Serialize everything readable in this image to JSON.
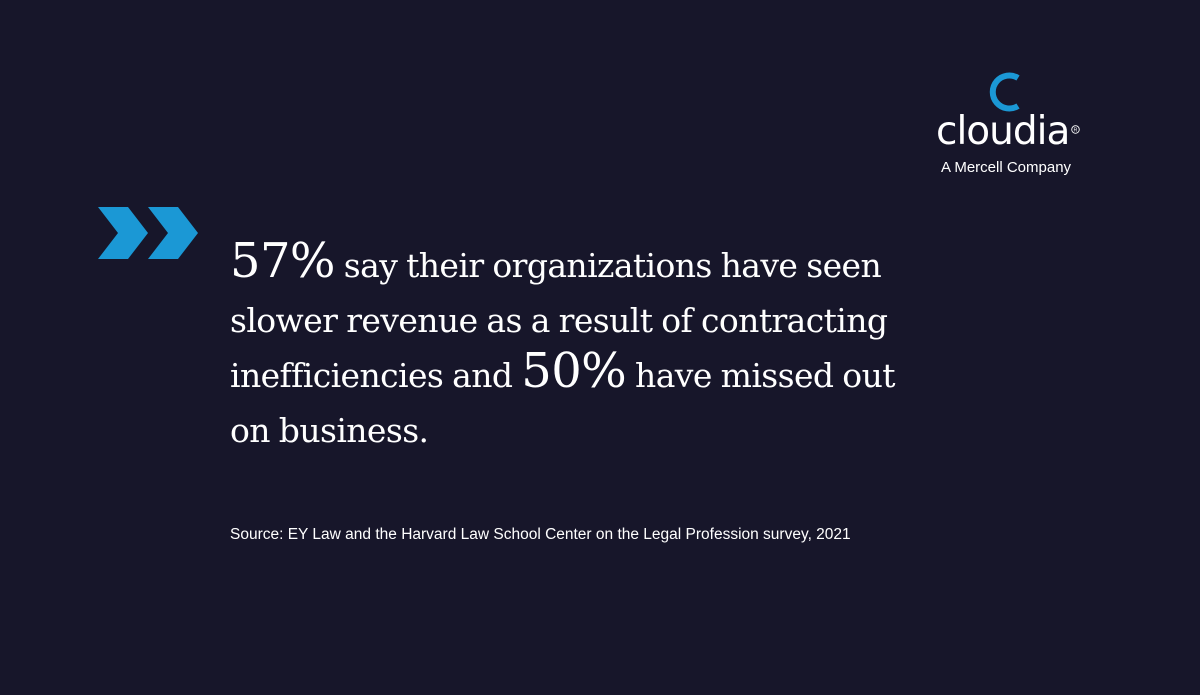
{
  "colors": {
    "background": "#17162a",
    "accent": "#1b98d5",
    "text": "#ffffff"
  },
  "logo": {
    "wordmark": "cloudia",
    "registered": "R",
    "tagline": "A Mercell Company",
    "mark_icon": "c-arc-icon"
  },
  "decoration": {
    "icon": "double-chevron-icon"
  },
  "quote": {
    "stat1": "57%",
    "text1": " say their organizations have seen slower revenue as a result of contracting inefficiencies and ",
    "stat2": "50%",
    "text2": " have missed out on business."
  },
  "source": "Source: EY Law and the Harvard Law School Center on the Legal Profession survey, 2021"
}
